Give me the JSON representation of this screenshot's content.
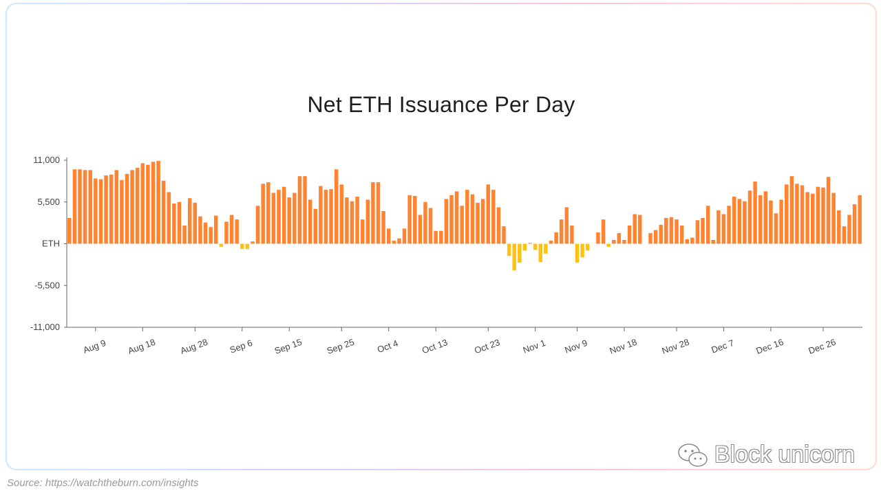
{
  "colors": {
    "positive": "#ff8431",
    "negative": "#ffc20e",
    "axis": "#666666",
    "tick_text": "#444444"
  },
  "watermark": {
    "text": "Block unicorn",
    "icon": "wechat-icon"
  },
  "source": "Source: https://watchtheburn.com/insights",
  "chart_data": {
    "type": "bar",
    "title": "Net ETH Issuance Per Day",
    "xlabel": "",
    "ylabel": "",
    "ylim": [
      -11000,
      11000
    ],
    "grid": false,
    "legend": "none",
    "yticks": [
      {
        "value": 11000,
        "label": "11,000"
      },
      {
        "value": 5500,
        "label": "5,500"
      },
      {
        "value": 0,
        "label": "ETH"
      },
      {
        "value": -5500,
        "label": "-5,500"
      },
      {
        "value": -11000,
        "label": "-11,000"
      }
    ],
    "xticks": [
      {
        "index": 5,
        "label": "Aug 9"
      },
      {
        "index": 14,
        "label": "Aug 18"
      },
      {
        "index": 24,
        "label": "Aug 28"
      },
      {
        "index": 33,
        "label": "Sep 6"
      },
      {
        "index": 42,
        "label": "Sep 15"
      },
      {
        "index": 52,
        "label": "Sep 25"
      },
      {
        "index": 61,
        "label": "Oct 4"
      },
      {
        "index": 70,
        "label": "Oct 13"
      },
      {
        "index": 80,
        "label": "Oct 23"
      },
      {
        "index": 89,
        "label": "Nov 1"
      },
      {
        "index": 97,
        "label": "Nov 9"
      },
      {
        "index": 106,
        "label": "Nov 18"
      },
      {
        "index": 116,
        "label": "Nov 28"
      },
      {
        "index": 125,
        "label": "Dec 7"
      },
      {
        "index": 134,
        "label": "Dec 16"
      },
      {
        "index": 144,
        "label": "Dec 26"
      }
    ],
    "values": [
      3400,
      9800,
      9800,
      9700,
      9700,
      8600,
      8500,
      9000,
      9100,
      9700,
      8400,
      9200,
      9700,
      10000,
      10600,
      10400,
      10800,
      10900,
      8300,
      6800,
      5300,
      5500,
      2400,
      6000,
      5400,
      3600,
      2800,
      2200,
      3700,
      -400,
      2900,
      3800,
      3200,
      -700,
      -700,
      300,
      5000,
      7900,
      8100,
      6700,
      7100,
      7500,
      6100,
      6700,
      8900,
      8900,
      5800,
      4600,
      7600,
      7100,
      7200,
      9800,
      7800,
      6100,
      5600,
      6200,
      3200,
      5800,
      8100,
      8100,
      4300,
      2000,
      400,
      700,
      2000,
      6400,
      6300,
      3800,
      5500,
      4700,
      1700,
      1700,
      5900,
      6400,
      6900,
      5000,
      7100,
      6500,
      5400,
      5900,
      7800,
      7100,
      4800,
      2300,
      -1600,
      -3500,
      -2500,
      -900,
      100,
      -800,
      -2400,
      -1300,
      400,
      1500,
      3200,
      4800,
      2400,
      -2500,
      -1800,
      -900,
      0,
      1500,
      3200,
      -400,
      500,
      1400,
      500,
      2400,
      3900,
      3800,
      0,
      1400,
      1800,
      2500,
      3400,
      3500,
      3200,
      2400,
      600,
      800,
      3100,
      3400,
      5000,
      500,
      4400,
      3900,
      5000,
      6200,
      5900,
      5600,
      7000,
      8200,
      6400,
      6900,
      5700,
      4000,
      5800,
      7800,
      8900,
      7900,
      7700,
      6800,
      6600,
      7500,
      7400,
      8800,
      6700,
      4400,
      2300,
      3800,
      5200,
      6400
    ]
  }
}
